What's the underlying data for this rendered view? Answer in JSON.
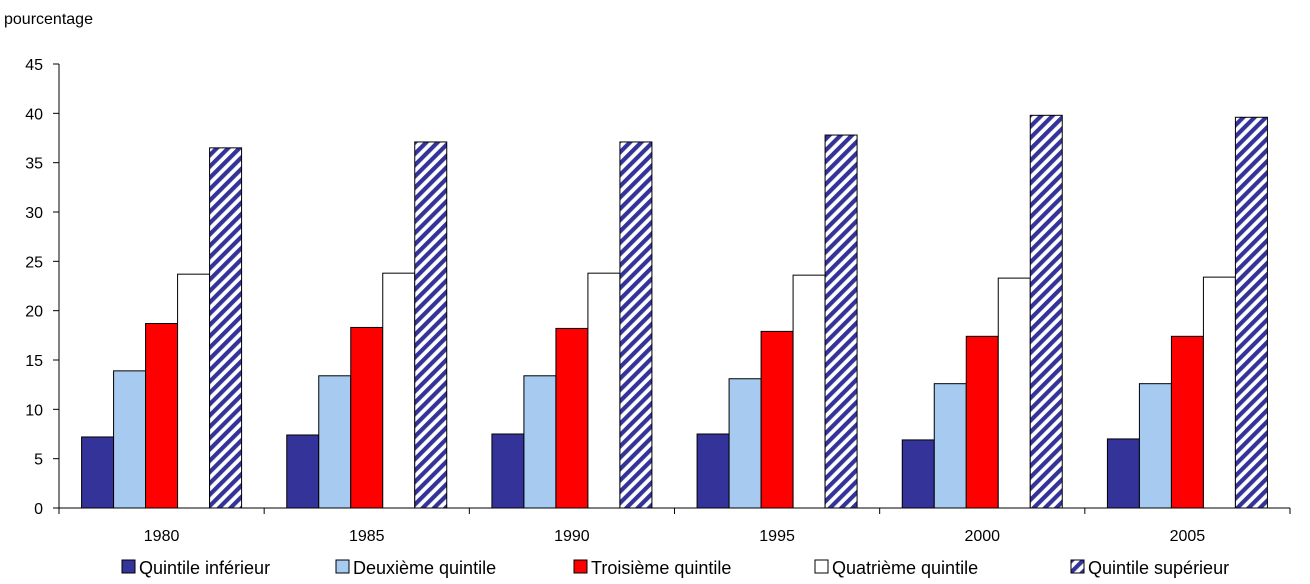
{
  "chart_data": {
    "type": "bar",
    "ylabel": "pourcentage",
    "xlabel": "",
    "title": "",
    "ylim": [
      0,
      45
    ],
    "yticks": [
      0,
      5,
      10,
      15,
      20,
      25,
      30,
      35,
      40,
      45
    ],
    "grid": false,
    "legend_position": "bottom",
    "categories": [
      "1980",
      "1985",
      "1990",
      "1995",
      "2000",
      "2005"
    ],
    "series": [
      {
        "name": "Quintile inférieur",
        "color": "#333399",
        "pattern": "solid",
        "values": [
          7.2,
          7.4,
          7.5,
          7.5,
          6.9,
          7.0
        ]
      },
      {
        "name": "Deuxième quintile",
        "color": "#a6caf0",
        "pattern": "solid",
        "values": [
          13.9,
          13.4,
          13.4,
          13.1,
          12.6,
          12.6
        ]
      },
      {
        "name": "Troisième quintile",
        "color": "#ff0000",
        "pattern": "solid",
        "values": [
          18.7,
          18.3,
          18.2,
          17.9,
          17.4,
          17.4
        ]
      },
      {
        "name": "Quatrième quintile",
        "color": "#ffffff",
        "pattern": "solid",
        "values": [
          23.7,
          23.8,
          23.8,
          23.6,
          23.3,
          23.4
        ]
      },
      {
        "name": "Quintile supérieur",
        "color": "#333399",
        "pattern": "diagonal-hatch",
        "values": [
          36.5,
          37.1,
          37.1,
          37.8,
          39.8,
          39.6
        ]
      }
    ]
  }
}
